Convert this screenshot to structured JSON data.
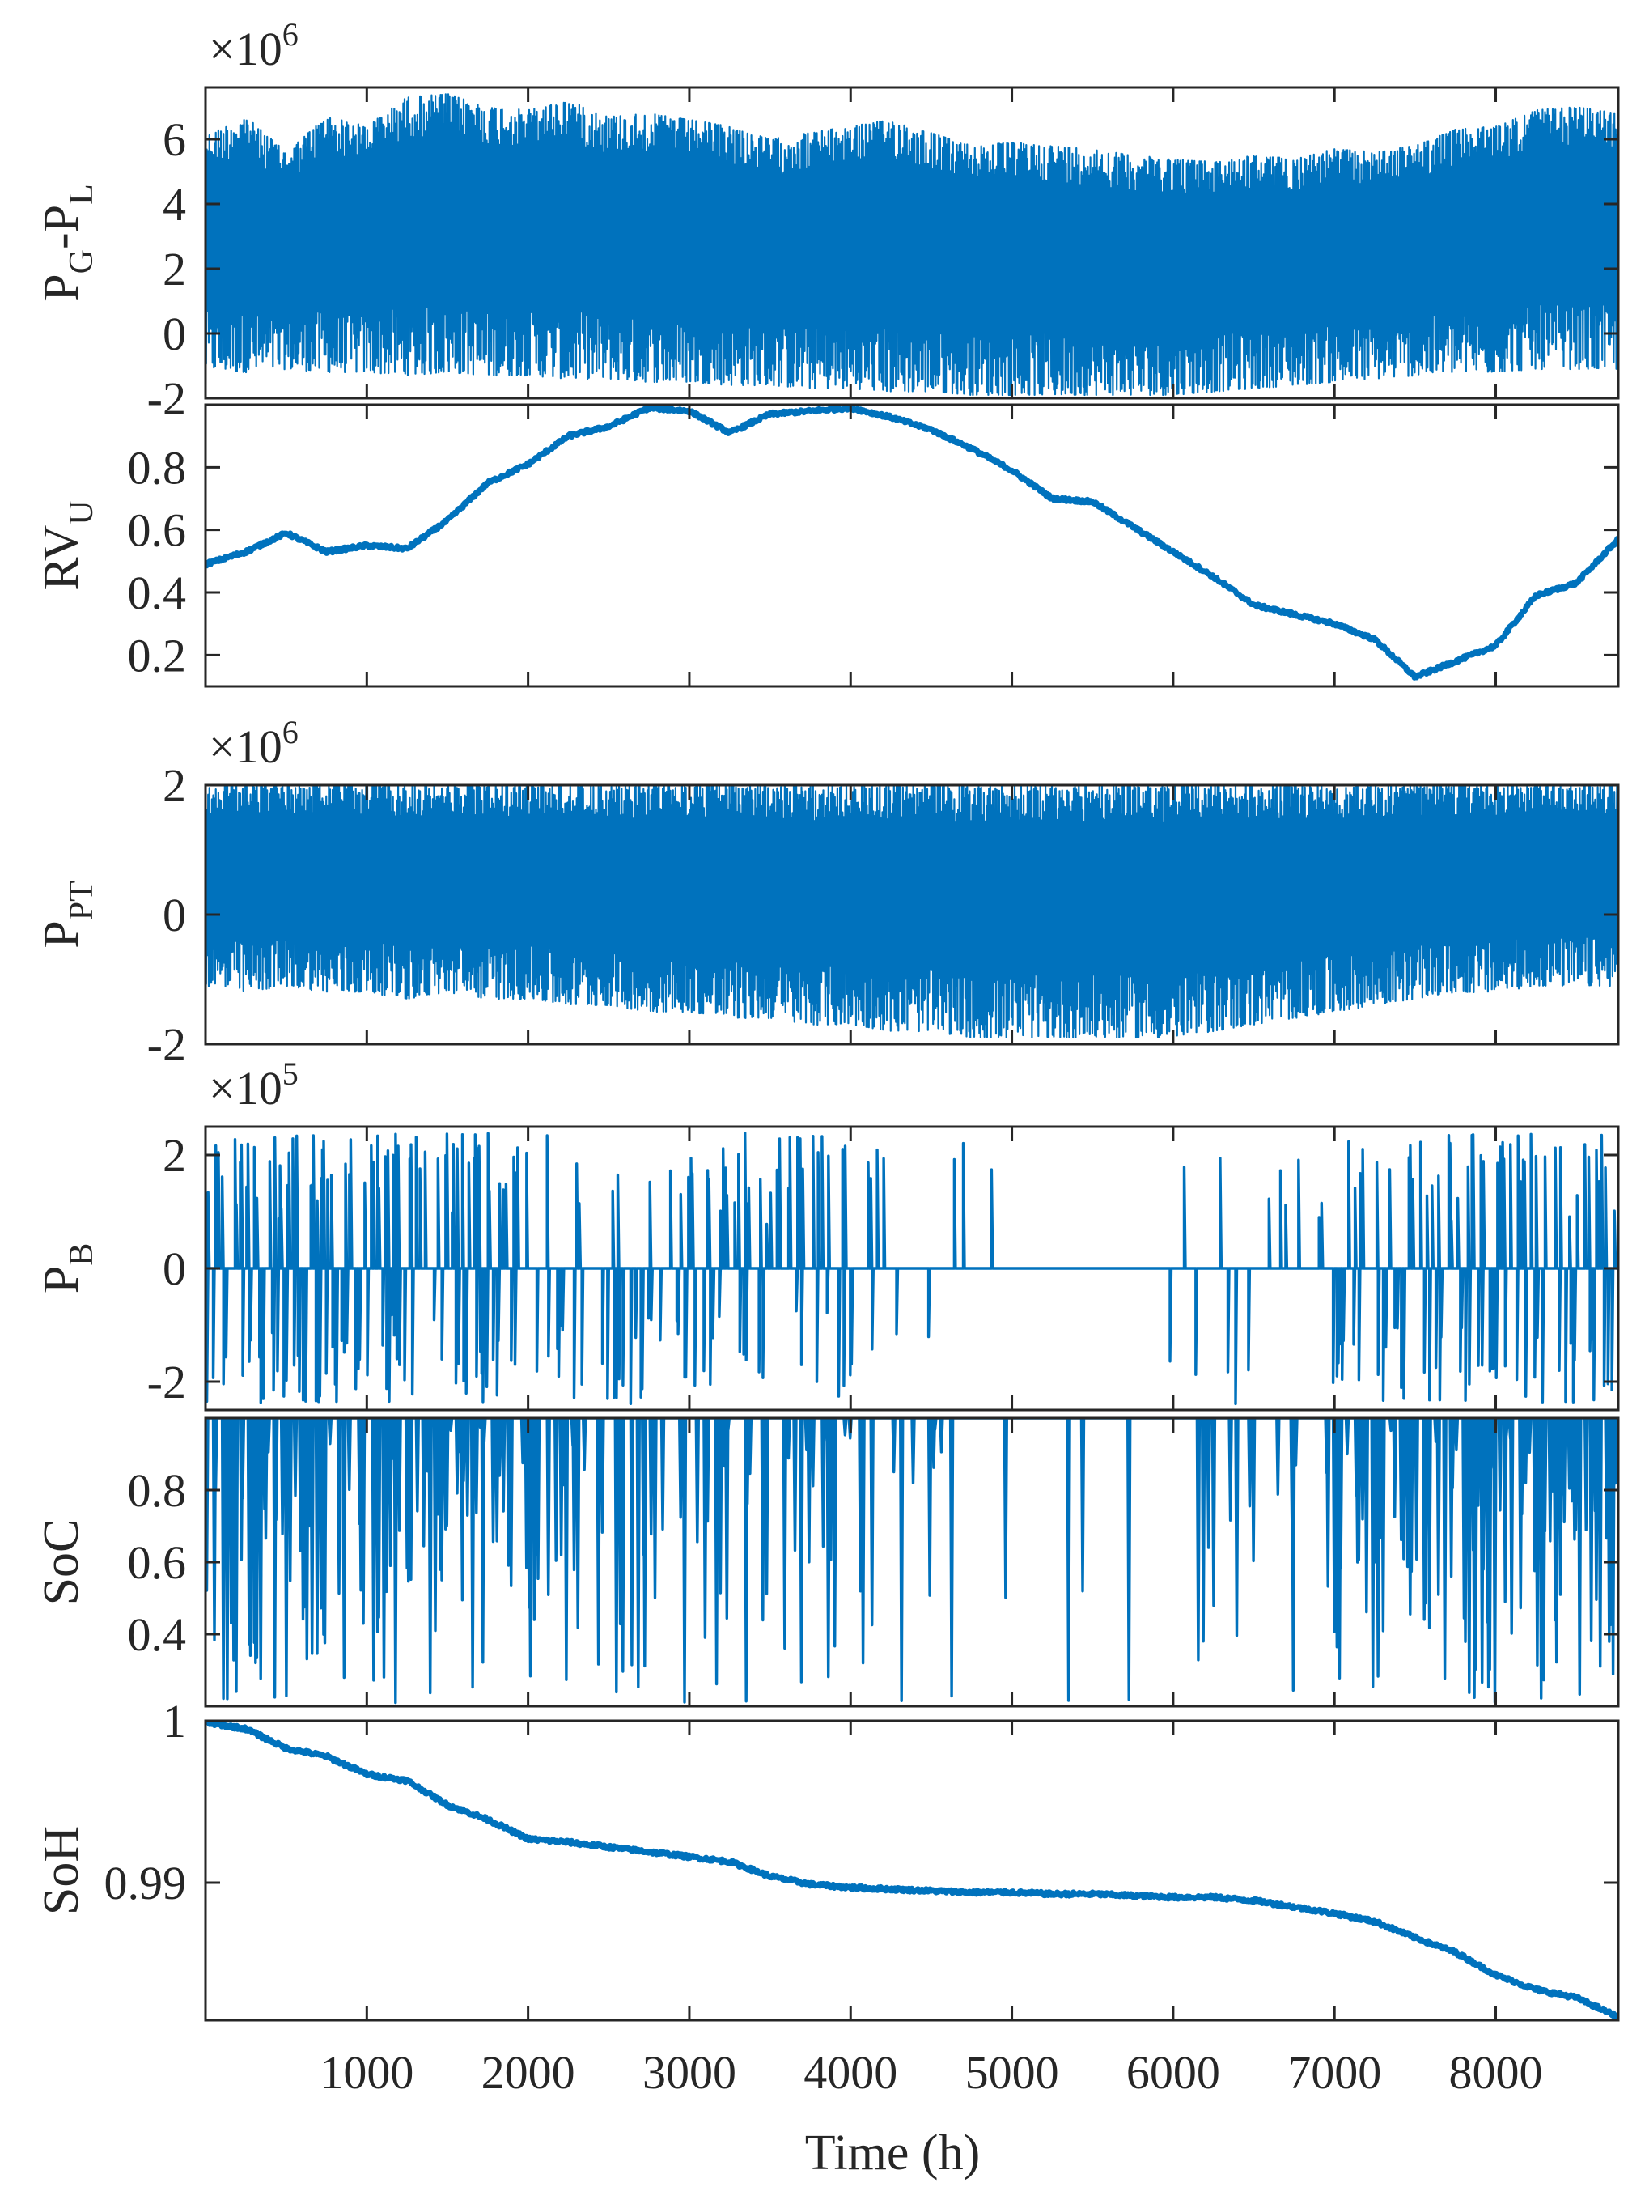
{
  "chart_data": [
    {
      "id": "pgpl",
      "type": "line",
      "ylabel_main": "P",
      "ylabel_parts": [
        [
          "P",
          ""
        ],
        [
          "G",
          "sub"
        ],
        [
          "-P",
          ""
        ],
        [
          "L",
          "sub"
        ]
      ],
      "exponent": {
        "base": "×10",
        "power": "6"
      },
      "ylim": [
        -2,
        7.6
      ],
      "yticks": [
        -2,
        0,
        2,
        4,
        6
      ],
      "ytick_labels": [
        "-2",
        "0",
        "2",
        "4",
        "6"
      ],
      "xlim": [
        0,
        8760
      ],
      "style": "dense",
      "series": [
        {
          "x": [
            0,
            250,
            500,
            750,
            1000,
            1250,
            1500,
            1750,
            2000,
            2250,
            2500,
            2750,
            3000,
            3250,
            3500,
            3750,
            4000,
            4250,
            4500,
            4750,
            5000,
            5250,
            5500,
            5750,
            6000,
            6250,
            6500,
            6750,
            7000,
            7250,
            7500,
            7750,
            8000,
            8250,
            8500,
            8760
          ],
          "max": [
            6.1,
            6.7,
            5.6,
            6.7,
            6.4,
            7.3,
            7.4,
            7.0,
            6.9,
            7.2,
            6.7,
            6.8,
            6.6,
            6.4,
            6.0,
            6.2,
            6.4,
            6.6,
            6.2,
            5.8,
            5.9,
            5.8,
            5.7,
            5.5,
            5.4,
            5.3,
            5.5,
            5.4,
            5.7,
            5.6,
            5.8,
            6.3,
            6.4,
            6.9,
            7.0,
            6.8
          ],
          "min": [
            -1.1,
            -1.2,
            -1.1,
            -1.2,
            -1.2,
            -1.3,
            -1.2,
            -1.3,
            -1.3,
            -1.4,
            -1.4,
            -1.5,
            -1.5,
            -1.6,
            -1.6,
            -1.7,
            -1.7,
            -1.8,
            -1.8,
            -1.9,
            -1.9,
            -1.9,
            -1.9,
            -1.9,
            -1.9,
            -1.8,
            -1.7,
            -1.6,
            -1.5,
            -1.4,
            -1.3,
            -1.2,
            -1.2,
            -1.1,
            -1.1,
            -1.1
          ]
        }
      ]
    },
    {
      "id": "rvu",
      "type": "line",
      "ylabel_parts": [
        [
          "RV",
          ""
        ],
        [
          "U",
          "sub"
        ]
      ],
      "ylim": [
        0.1,
        1.0
      ],
      "yticks": [
        0.2,
        0.4,
        0.6,
        0.8
      ],
      "ytick_labels": [
        "0.2",
        "0.4",
        "0.6",
        "0.8"
      ],
      "xlim": [
        0,
        8760
      ],
      "style": "thick",
      "series": [
        {
          "x": [
            0,
            250,
            500,
            750,
            1000,
            1250,
            1500,
            1750,
            2000,
            2250,
            2500,
            2750,
            3000,
            3250,
            3500,
            3750,
            4000,
            4250,
            4500,
            4750,
            5000,
            5250,
            5500,
            5750,
            6000,
            6250,
            6500,
            6750,
            7000,
            7250,
            7500,
            7750,
            8000,
            8250,
            8500,
            8760
          ],
          "y": [
            0.49,
            0.53,
            0.59,
            0.53,
            0.55,
            0.54,
            0.63,
            0.75,
            0.81,
            0.9,
            0.93,
            0.99,
            0.98,
            0.91,
            0.97,
            0.98,
            0.99,
            0.96,
            0.92,
            0.86,
            0.79,
            0.7,
            0.69,
            0.61,
            0.53,
            0.45,
            0.36,
            0.33,
            0.3,
            0.25,
            0.13,
            0.18,
            0.23,
            0.39,
            0.43,
            0.57
          ]
        }
      ]
    },
    {
      "id": "ppt",
      "type": "line",
      "ylabel_parts": [
        [
          "P",
          ""
        ],
        [
          "PT",
          "sub"
        ]
      ],
      "exponent": {
        "base": "×10",
        "power": "6"
      },
      "ylim": [
        -2,
        2
      ],
      "yticks": [
        -2,
        0,
        2
      ],
      "ytick_labels": [
        "-2",
        "0",
        "2"
      ],
      "xlim": [
        0,
        8760
      ],
      "style": "dense",
      "series": [
        {
          "x": [
            0,
            250,
            500,
            750,
            1000,
            1250,
            1500,
            1750,
            2000,
            2250,
            2500,
            2750,
            3000,
            3250,
            3500,
            3750,
            4000,
            4250,
            4500,
            4750,
            5000,
            5250,
            5500,
            5750,
            6000,
            6250,
            6500,
            6750,
            7000,
            7250,
            7500,
            7750,
            8000,
            8250,
            8500,
            8760
          ],
          "max": [
            2.0,
            2.0,
            2.0,
            2.0,
            2.0,
            2.0,
            2.0,
            2.0,
            2.0,
            2.0,
            2.0,
            2.0,
            2.0,
            2.0,
            2.0,
            2.0,
            2.0,
            2.0,
            2.0,
            2.0,
            2.0,
            2.0,
            2.0,
            2.0,
            2.0,
            2.0,
            2.0,
            2.0,
            2.0,
            2.0,
            2.0,
            2.0,
            2.0,
            2.0,
            2.0,
            2.0
          ],
          "min": [
            -1.1,
            -1.2,
            -1.1,
            -1.2,
            -1.2,
            -1.3,
            -1.2,
            -1.3,
            -1.3,
            -1.4,
            -1.4,
            -1.5,
            -1.5,
            -1.6,
            -1.6,
            -1.7,
            -1.7,
            -1.8,
            -1.8,
            -1.9,
            -1.9,
            -1.9,
            -1.9,
            -1.9,
            -1.9,
            -1.8,
            -1.7,
            -1.6,
            -1.5,
            -1.4,
            -1.3,
            -1.2,
            -1.2,
            -1.1,
            -1.1,
            -1.1
          ]
        }
      ]
    },
    {
      "id": "pb",
      "type": "line",
      "ylabel_parts": [
        [
          "P",
          ""
        ],
        [
          "B",
          "sub"
        ]
      ],
      "exponent": {
        "base": "×10",
        "power": "5"
      },
      "ylim": [
        -2.5,
        2.5
      ],
      "yticks": [
        -2,
        0,
        2
      ],
      "ytick_labels": [
        "-2",
        "0",
        "2"
      ],
      "xlim": [
        0,
        8760
      ],
      "style": "spikes",
      "series": [
        {
          "baseline": 0,
          "spike_density": [
            0.9,
            0.95,
            1.0,
            0.95,
            0.7,
            0.8,
            0.9,
            0.8,
            0.6,
            0.5,
            0.55,
            0.6,
            0.6,
            0.55,
            0.5,
            0.5,
            0.35,
            0.2,
            0.1,
            0.05,
            0.05,
            0.05,
            0.05,
            0.05,
            0.05,
            0.1,
            0.2,
            0.3,
            0.55,
            0.65,
            0.7,
            0.85,
            0.9,
            0.95,
            0.95,
            0.95
          ]
        }
      ]
    },
    {
      "id": "soc",
      "type": "line",
      "ylabel_parts": [
        [
          "SoC",
          ""
        ]
      ],
      "ylim": [
        0.2,
        1.0
      ],
      "yticks": [
        0.4,
        0.6,
        0.8
      ],
      "ytick_labels": [
        "0.4",
        "0.6",
        "0.8"
      ],
      "xlim": [
        0,
        8760
      ],
      "style": "drops",
      "series": [
        {
          "top": 1.0,
          "drop_density": [
            0.9,
            0.95,
            1.0,
            0.95,
            0.7,
            0.8,
            0.9,
            0.8,
            0.6,
            0.5,
            0.55,
            0.6,
            0.6,
            0.55,
            0.5,
            0.5,
            0.35,
            0.2,
            0.1,
            0.05,
            0.05,
            0.05,
            0.05,
            0.05,
            0.05,
            0.1,
            0.2,
            0.3,
            0.55,
            0.65,
            0.7,
            0.85,
            0.9,
            0.95,
            0.95,
            0.95
          ]
        }
      ]
    },
    {
      "id": "soh",
      "type": "line",
      "ylabel_parts": [
        [
          "SoH",
          ""
        ]
      ],
      "ylim": [
        0.9815,
        1.0
      ],
      "yticks": [
        0.99,
        1.0
      ],
      "ytick_labels": [
        "0.99",
        "1"
      ],
      "xlim": [
        0,
        8760
      ],
      "style": "thick",
      "xticks": [
        1000,
        2000,
        3000,
        4000,
        5000,
        6000,
        7000,
        8000
      ],
      "xtick_labels": [
        "1000",
        "2000",
        "3000",
        "4000",
        "5000",
        "6000",
        "7000",
        "8000"
      ],
      "xlabel": "Time (h)",
      "series": [
        {
          "x": [
            0,
            250,
            500,
            750,
            1000,
            1250,
            1500,
            1750,
            2000,
            2250,
            2500,
            2750,
            3000,
            3250,
            3500,
            3750,
            4000,
            4250,
            4500,
            4750,
            5000,
            5250,
            5500,
            5750,
            6000,
            6250,
            6500,
            6750,
            7000,
            7250,
            7500,
            7750,
            8000,
            8250,
            8500,
            8760
          ],
          "y": [
            0.9999,
            0.9995,
            0.9983,
            0.9978,
            0.9967,
            0.9963,
            0.9948,
            0.9939,
            0.9927,
            0.9925,
            0.9922,
            0.9919,
            0.9916,
            0.9913,
            0.9904,
            0.9899,
            0.9897,
            0.9896,
            0.9895,
            0.9894,
            0.9894,
            0.9893,
            0.9893,
            0.9892,
            0.9891,
            0.9891,
            0.9889,
            0.9885,
            0.9881,
            0.9876,
            0.9866,
            0.9857,
            0.9843,
            0.9834,
            0.9829,
            0.9817
          ]
        }
      ]
    }
  ]
}
